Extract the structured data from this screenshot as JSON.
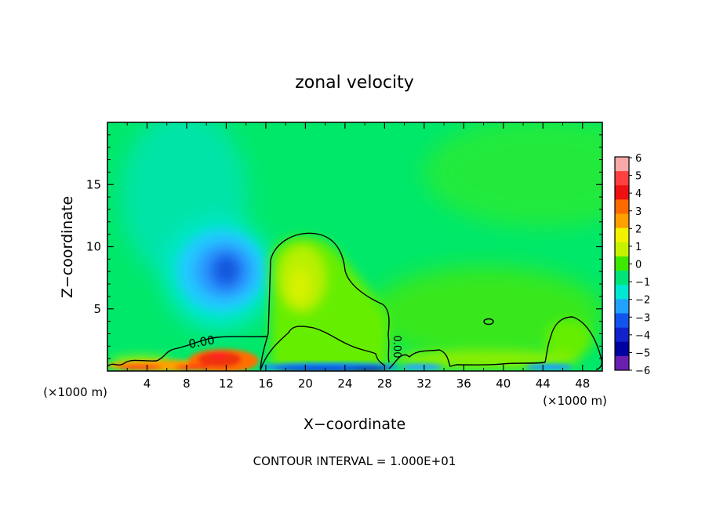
{
  "chart_data": {
    "type": "heatmap",
    "title": "zonal velocity",
    "xlabel": "X−coordinate",
    "ylabel": "Z−coordinate",
    "x_unit_left": "(×1000 m)",
    "x_unit_right": "(×1000 m)",
    "footer": "CONTOUR INTERVAL = 1.000E+01",
    "xlim": [
      0,
      50
    ],
    "ylim": [
      0,
      20
    ],
    "x_ticks": [
      4,
      8,
      12,
      16,
      20,
      24,
      28,
      32,
      36,
      40,
      44,
      48
    ],
    "y_ticks": [
      5,
      10,
      15
    ],
    "contour_label": "0.00",
    "colorbar": {
      "levels": [
        "6",
        "5",
        "4",
        "3",
        "2",
        "1",
        "0",
        "−1",
        "−2",
        "−3",
        "−4",
        "−5",
        "−6"
      ],
      "colors": [
        "#f7a8a8",
        "#ff4040",
        "#ee1111",
        "#ff6a00",
        "#ff9f00",
        "#f2f200",
        "#c6f200",
        "#3ee800",
        "#00e27a",
        "#00e8d2",
        "#22a2ff",
        "#1155ee",
        "#1122cc",
        "#0000a0",
        "#6a1fb0"
      ]
    },
    "features": [
      {
        "kind": "min",
        "x": 12.3,
        "z": 8.0,
        "value": -3.0,
        "desc": "blue core"
      },
      {
        "kind": "max",
        "x": 11.5,
        "z": 0.8,
        "value": 4.0,
        "desc": "low-level red jet"
      },
      {
        "kind": "max",
        "x": 19.5,
        "z": 7.5,
        "value": 1.3,
        "desc": "yellow-green lobe"
      },
      {
        "kind": "min",
        "x": 22.0,
        "z": 0.2,
        "value": -4.0,
        "desc": "surface blue"
      }
    ]
  }
}
